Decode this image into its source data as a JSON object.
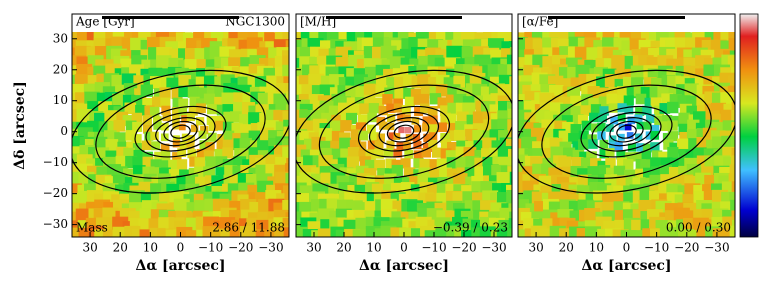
{
  "chart_data": [
    {
      "type": "map",
      "title": "Age [Gyr]",
      "subtitle": "NGC1300",
      "annotation": "Mass",
      "range_label": "2.86 / 11.88",
      "xlabel": "Δα [arcsec]",
      "ylabel": "Δδ [arcsec]",
      "xlim": [
        36,
        -36
      ],
      "ylim": [
        -34,
        38
      ],
      "xticks": [
        30,
        20,
        10,
        0,
        {
          "value": -10,
          "label": "−10"
        },
        {
          "value": -20,
          "label": "−20"
        },
        {
          "value": -30,
          "label": "−30"
        }
      ],
      "yticks": [
        30,
        20,
        10,
        0,
        {
          "value": -10,
          "label": "−10"
        },
        {
          "value": -20,
          "label": "−20"
        },
        {
          "value": -30,
          "label": "−30"
        }
      ]
    },
    {
      "type": "map",
      "title": "[M/H]",
      "range_label": "−0.39 / 0.23",
      "xlabel": "Δα [arcsec]",
      "xlim": [
        36,
        -36
      ],
      "ylim": [
        -34,
        38
      ],
      "xticks": [
        30,
        20,
        10,
        0,
        {
          "value": -10,
          "label": "−10"
        },
        {
          "value": -20,
          "label": "−20"
        },
        {
          "value": -30,
          "label": "−30"
        }
      ]
    },
    {
      "type": "map",
      "title": "[α/Fe]",
      "range_label": "0.00 / 0.30",
      "xlabel": "Δα [arcsec]",
      "xlim": [
        36,
        -36
      ],
      "ylim": [
        -34,
        38
      ],
      "xticks": [
        30,
        20,
        10,
        0,
        {
          "value": -10,
          "label": "−10"
        },
        {
          "value": -20,
          "label": "−20"
        },
        {
          "value": -30,
          "label": "−30"
        }
      ]
    }
  ]
}
